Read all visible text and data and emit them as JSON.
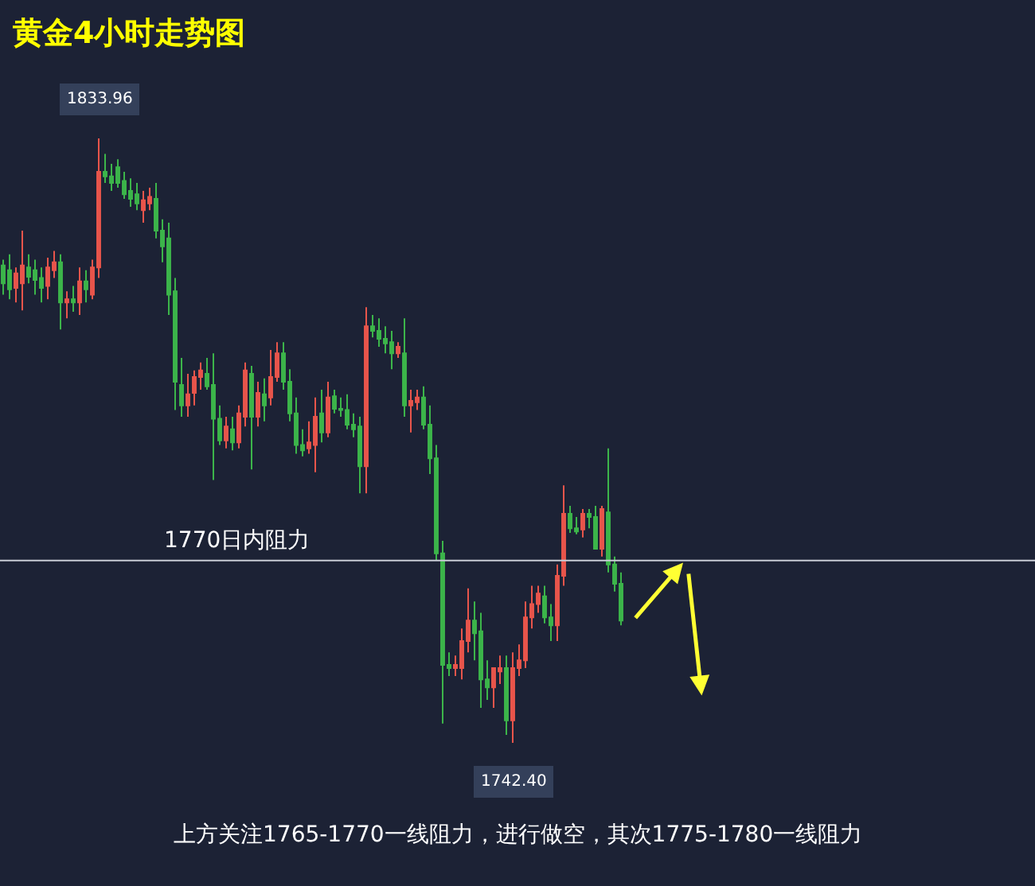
{
  "chart_data": {
    "type": "candlestick",
    "title": "黄金4小时走势图",
    "categories": [
      null,
      null,
      null,
      null,
      null,
      null,
      null,
      null,
      null,
      null,
      null,
      null,
      null,
      null,
      null,
      null,
      null,
      null,
      null,
      null,
      null,
      null,
      null,
      null,
      null,
      null,
      null,
      null,
      null,
      null,
      null,
      null,
      null,
      null,
      null,
      null,
      null,
      null,
      null,
      null,
      null,
      null,
      null,
      null,
      null,
      null,
      null,
      null,
      null,
      null,
      null,
      null,
      null,
      null,
      null,
      null,
      null,
      null,
      null,
      null,
      null,
      null,
      null,
      null,
      null,
      null,
      null,
      null,
      null,
      null,
      null,
      null,
      null,
      null,
      null,
      null,
      null,
      null,
      null,
      null,
      null,
      null,
      null,
      null,
      null,
      null,
      null,
      null,
      null,
      null,
      null,
      null,
      null,
      null,
      null,
      null,
      null,
      null
    ],
    "colors": [
      "#3cb54a",
      "#3cb54a",
      "#e8554b",
      "#e8554b",
      "#3cb54a",
      "#3cb54a",
      "#3cb54a",
      "#e8554b",
      "#e8554b",
      "#3cb54a",
      "#e8554b",
      "#3cb54a",
      "#e8554b",
      "#3cb54a",
      "#e8554b",
      "#e8554b",
      "#3cb54a",
      "#3cb54a",
      "#3cb54a",
      "#3cb54a",
      "#3cb54a",
      "#3cb54a",
      "#e8554b",
      "#e8554b",
      "#3cb54a",
      "#3cb54a",
      "#3cb54a",
      "#3cb54a",
      "#3cb54a",
      "#e8554b",
      "#e8554b",
      "#e8554b",
      "#3cb54a",
      "#3cb54a",
      "#3cb54a",
      "#e8554b",
      "#3cb54a",
      "#e8554b",
      "#e8554b",
      "#3cb54a",
      "#e8554b",
      "#3cb54a",
      "#e8554b",
      "#e8554b",
      "#3cb54a",
      "#3cb54a",
      "#3cb54a",
      "#3cb54a",
      "#e8554b",
      "#e8554b",
      "#3cb54a",
      "#e8554b",
      "#3cb54a",
      "#3cb54a",
      "#3cb54a",
      "#3cb54a",
      "#3cb54a",
      "#e8554b",
      "#3cb54a",
      "#3cb54a",
      "#3cb54a",
      "#3cb54a",
      "#e8554b",
      "#3cb54a",
      "#e8554b",
      "#e8554b",
      "#3cb54a",
      "#3cb54a",
      "#3cb54a",
      "#3cb54a",
      "#3cb54a",
      "#e8554b",
      "#e8554b",
      "#e8554b",
      "#3cb54a",
      "#3cb54a",
      "#3cb54a",
      "#e8554b",
      "#e8554b",
      "#3cb54a",
      "#e8554b",
      "#e8554b",
      "#e8554b",
      "#e8554b",
      "#e8554b",
      "#3cb54a",
      "#3cb54a",
      "#e8554b",
      "#e8554b",
      "#3cb54a",
      "#3cb54a",
      "#e8554b",
      "#3cb54a",
      "#3cb54a",
      "#e8554b",
      "#3cb54a",
      "#3cb54a",
      "#3cb54a"
    ],
    "ohlc": [
      [
        1814.7,
        1815.6,
        1810.3,
        1812.0
      ],
      [
        1814.0,
        1816.4,
        1809.6,
        1811.1
      ],
      [
        1811.3,
        1814.4,
        1809.1,
        1813.5
      ],
      [
        1812.0,
        1820.0,
        1807.9,
        1814.7
      ],
      [
        1814.4,
        1816.4,
        1812.0,
        1813.0
      ],
      [
        1814.0,
        1815.6,
        1810.3,
        1812.5
      ],
      [
        1812.8,
        1814.4,
        1809.1,
        1811.3
      ],
      [
        1811.6,
        1815.9,
        1809.6,
        1814.4
      ],
      [
        1814.0,
        1816.9,
        1812.8,
        1815.2
      ],
      [
        1815.2,
        1816.4,
        1805.0,
        1809.1
      ],
      [
        1809.1,
        1810.8,
        1806.7,
        1809.6
      ],
      [
        1809.6,
        1811.6,
        1807.7,
        1809.1
      ],
      [
        1809.1,
        1814.4,
        1807.2,
        1812.3
      ],
      [
        1812.3,
        1814.0,
        1809.1,
        1811.1
      ],
      [
        1810.3,
        1815.6,
        1809.6,
        1814.4
      ],
      [
        1814.4,
        1833.96,
        1812.8,
        1828.9
      ],
      [
        1828.9,
        1831.6,
        1827.2,
        1828.2
      ],
      [
        1828.2,
        1830.1,
        1826.0,
        1827.2
      ],
      [
        1829.6,
        1830.8,
        1826.5,
        1827.2
      ],
      [
        1827.5,
        1828.9,
        1824.8,
        1825.5
      ],
      [
        1826.0,
        1827.9,
        1823.6,
        1824.8
      ],
      [
        1825.5,
        1827.2,
        1823.1,
        1824.1
      ],
      [
        1823.1,
        1826.0,
        1821.2,
        1824.6
      ],
      [
        1824.1,
        1826.5,
        1823.1,
        1825.1
      ],
      [
        1824.8,
        1827.2,
        1818.8,
        1820.0
      ],
      [
        1820.0,
        1821.7,
        1815.2,
        1817.6
      ],
      [
        1818.8,
        1821.2,
        1807.2,
        1810.3
      ],
      [
        1810.8,
        1812.8,
        1792.8,
        1797.1
      ],
      [
        1796.6,
        1800.7,
        1791.8,
        1793.5
      ],
      [
        1793.5,
        1798.3,
        1791.8,
        1795.2
      ],
      [
        1795.4,
        1798.8,
        1793.5,
        1797.8
      ],
      [
        1797.8,
        1800.0,
        1795.9,
        1798.8
      ],
      [
        1798.3,
        1800.7,
        1795.9,
        1796.4
      ],
      [
        1796.6,
        1801.4,
        1782.2,
        1791.5
      ],
      [
        1791.5,
        1793.5,
        1787.5,
        1788.2
      ],
      [
        1788.2,
        1791.8,
        1787.0,
        1790.3
      ],
      [
        1789.9,
        1791.8,
        1786.7,
        1787.9
      ],
      [
        1787.9,
        1793.5,
        1787.0,
        1792.3
      ],
      [
        1791.8,
        1800.0,
        1790.3,
        1798.8
      ],
      [
        1798.3,
        1799.5,
        1783.8,
        1791.8
      ],
      [
        1791.8,
        1797.1,
        1790.3,
        1795.4
      ],
      [
        1795.2,
        1797.6,
        1791.1,
        1793.5
      ],
      [
        1794.7,
        1801.9,
        1793.5,
        1797.8
      ],
      [
        1797.8,
        1803.1,
        1797.1,
        1801.4
      ],
      [
        1801.4,
        1803.1,
        1795.9,
        1797.1
      ],
      [
        1797.1,
        1799.0,
        1791.1,
        1792.3
      ],
      [
        1792.3,
        1794.7,
        1786.2,
        1787.5
      ],
      [
        1787.5,
        1789.9,
        1785.8,
        1786.7
      ],
      [
        1787.0,
        1791.1,
        1786.2,
        1787.9
      ],
      [
        1787.5,
        1794.7,
        1783.4,
        1791.8
      ],
      [
        1792.3,
        1795.9,
        1787.9,
        1789.4
      ],
      [
        1789.4,
        1797.1,
        1788.7,
        1794.7
      ],
      [
        1794.9,
        1795.9,
        1792.3,
        1793.0
      ],
      [
        1793.0,
        1794.7,
        1791.8,
        1792.8
      ],
      [
        1792.8,
        1795.2,
        1789.9,
        1790.6
      ],
      [
        1790.6,
        1792.3,
        1788.7,
        1789.9
      ],
      [
        1790.3,
        1791.8,
        1780.2,
        1784.3
      ],
      [
        1784.3,
        1808.4,
        1780.2,
        1805.5
      ],
      [
        1805.5,
        1807.2,
        1803.8,
        1804.8
      ],
      [
        1804.8,
        1806.7,
        1802.4,
        1803.6
      ],
      [
        1803.6,
        1805.5,
        1801.4,
        1802.9
      ],
      [
        1803.1,
        1804.8,
        1799.0,
        1801.4
      ],
      [
        1801.4,
        1803.1,
        1800.7,
        1802.4
      ],
      [
        1801.4,
        1806.7,
        1791.8,
        1793.5
      ],
      [
        1793.5,
        1795.9,
        1789.4,
        1794.2
      ],
      [
        1794.0,
        1795.9,
        1792.8,
        1794.7
      ],
      [
        1794.7,
        1796.4,
        1789.9,
        1790.6
      ],
      [
        1790.6,
        1793.5,
        1783.1,
        1785.5
      ],
      [
        1785.5,
        1787.5,
        1770.1,
        1771.1
      ],
      [
        1771.1,
        1773.0,
        1745.3,
        1754.2
      ],
      [
        1754.2,
        1756.1,
        1752.5,
        1753.7
      ],
      [
        1753.7,
        1755.6,
        1752.5,
        1754.2
      ],
      [
        1753.7,
        1759.7,
        1752.0,
        1757.8
      ],
      [
        1757.8,
        1765.8,
        1756.1,
        1760.9
      ],
      [
        1760.9,
        1763.8,
        1754.9,
        1759.0
      ],
      [
        1759.3,
        1762.1,
        1747.7,
        1752.0
      ],
      [
        1752.0,
        1754.9,
        1748.9,
        1750.8
      ],
      [
        1750.8,
        1753.7,
        1747.7,
        1753.7
      ],
      [
        1753.2,
        1755.6,
        1751.3,
        1753.7
      ],
      [
        1753.7,
        1755.6,
        1743.6,
        1745.8
      ],
      [
        1745.8,
        1756.1,
        1742.4,
        1753.7
      ],
      [
        1753.7,
        1757.3,
        1752.5,
        1754.9
      ],
      [
        1754.9,
        1763.8,
        1753.7,
        1761.4
      ],
      [
        1761.4,
        1766.2,
        1759.7,
        1763.4
      ],
      [
        1763.4,
        1766.2,
        1762.1,
        1765.0
      ],
      [
        1764.6,
        1766.2,
        1760.5,
        1761.4
      ],
      [
        1761.4,
        1763.4,
        1757.8,
        1760.2
      ],
      [
        1760.2,
        1769.4,
        1757.8,
        1767.7
      ],
      [
        1767.7,
        1781.4,
        1766.2,
        1777.1
      ],
      [
        1777.1,
        1778.3,
        1774.2,
        1774.9
      ],
      [
        1774.9,
        1776.6,
        1774.0,
        1774.4
      ],
      [
        1774.7,
        1777.8,
        1773.5,
        1777.1
      ],
      [
        1777.1,
        1777.8,
        1774.9,
        1776.6
      ],
      [
        1776.6,
        1778.3,
        1771.8,
        1771.8
      ],
      [
        1771.8,
        1778.3,
        1770.6,
        1777.8
      ],
      [
        1777.3,
        1787.0,
        1768.2,
        1769.4
      ],
      [
        1769.4,
        1770.6,
        1765.3,
        1766.5
      ],
      [
        1766.5,
        1768.2,
        1760.2,
        1760.9
      ]
    ],
    "ref_lines": [
      {
        "axis": "y",
        "value": 1770,
        "label": "1770日内阻力",
        "color": "#c9cdd6"
      }
    ],
    "annotations": [
      {
        "text": "1833.96",
        "y": 1833.96
      },
      {
        "text": "1742.40",
        "y": 1742.4
      },
      "上方关注1765-1770一线阻力，进行做空，其次1775-1780一线阻力"
    ]
  }
}
